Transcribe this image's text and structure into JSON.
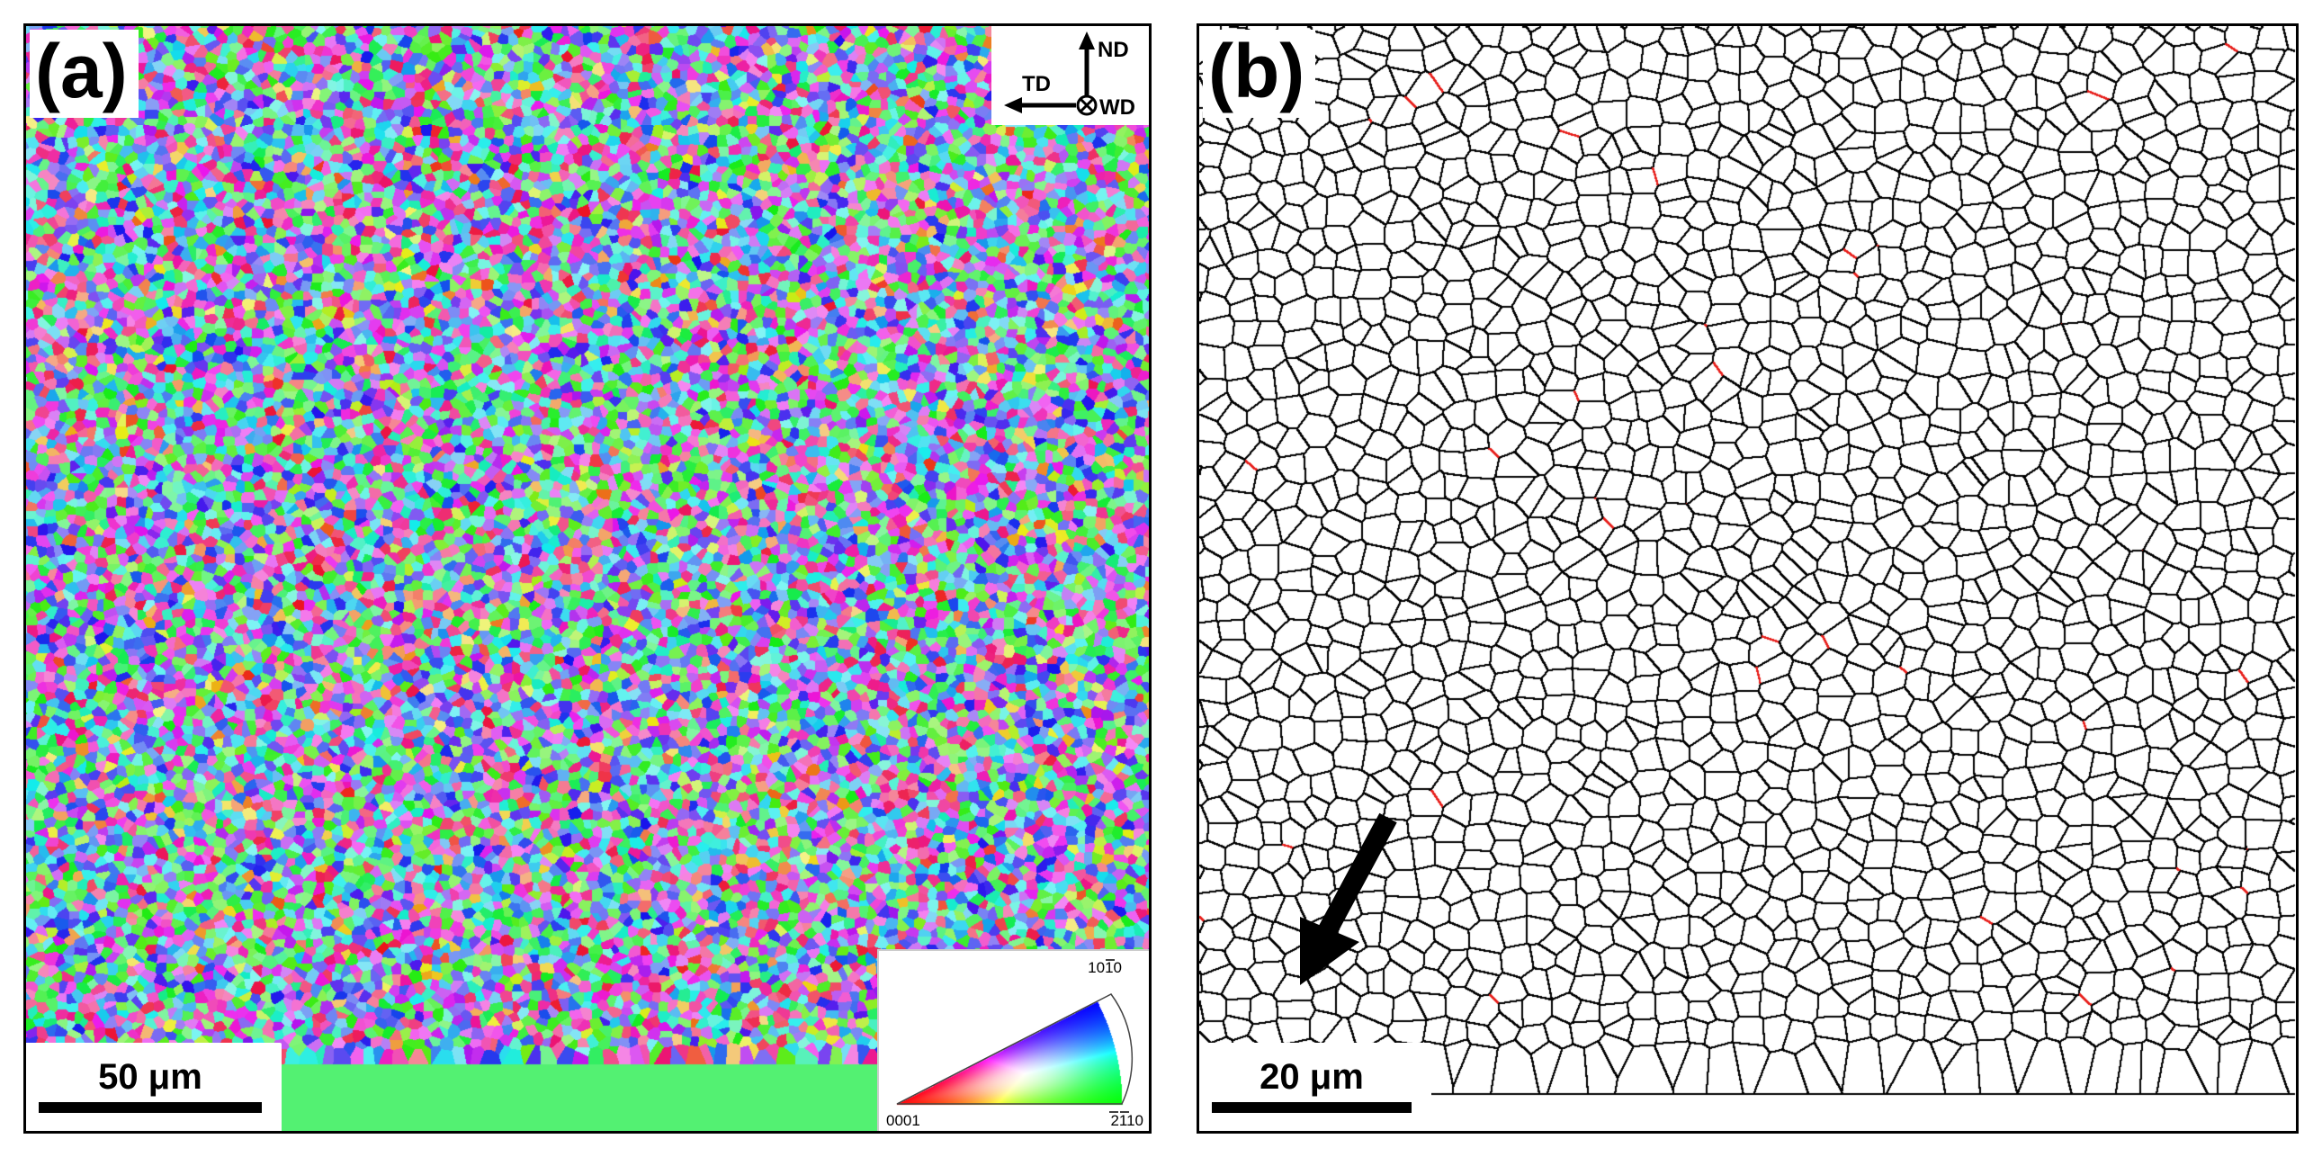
{
  "panel_a": {
    "label": "(a)",
    "scalebar": {
      "label": "50 μm"
    },
    "axes": {
      "up": "ND",
      "left": "TD",
      "out": "WD"
    },
    "ipf_legend": {
      "corner_top": "1010",
      "corner_left": "0001",
      "corner_right": "2110",
      "colors": {
        "0001": "#ff0000",
        "1010": "#0000ff",
        "2110": "#00ff00"
      }
    }
  },
  "panel_b": {
    "label": "(b)",
    "scalebar": {
      "label": "20 μm"
    },
    "colors": {
      "high_angle_boundary": "#000000",
      "low_angle_boundary": "#e8201c",
      "arrow": "#000000"
    }
  }
}
